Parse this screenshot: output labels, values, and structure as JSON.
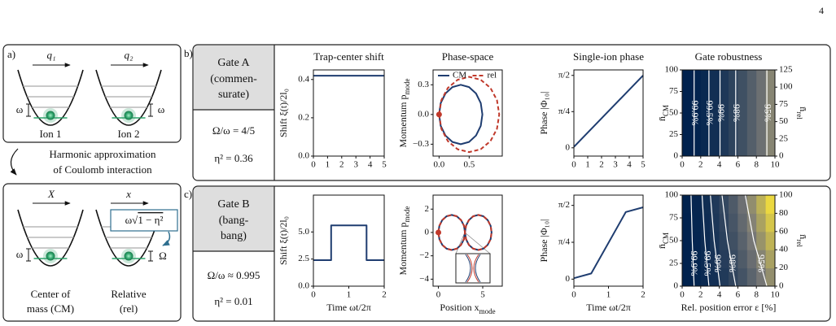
{
  "page_number": "4",
  "panel_a": {
    "label": "a)",
    "q1": "q₁",
    "q2": "q₂",
    "omega_left": "ω",
    "omega_right": "ω",
    "ion1": "Ion 1",
    "ion2": "Ion 2",
    "approx": [
      "Harmonic approximation",
      "of Coulomb interaction"
    ],
    "X": "X",
    "x": "x",
    "freq_box": [
      "ω√",
      "1 − η²"
    ],
    "omega_cm": "ω",
    "omega_rel": "Ω",
    "cm_label": [
      "Center of",
      "mass (CM)"
    ],
    "rel_label": [
      "Relative",
      "(rel)"
    ]
  },
  "panel_b": {
    "label": "b)",
    "gate": [
      "Gate A",
      "(commen-",
      "surate)"
    ],
    "ratio": "Ω/ω = 4/5",
    "eta": "η² = 0.36"
  },
  "panel_c": {
    "label": "c)",
    "gate": [
      "Gate B",
      "(bang-",
      "bang)"
    ],
    "ratio": "Ω/ω ≈ 0.995",
    "eta": "η² = 0.01"
  },
  "chart_data": [
    {
      "type": "line",
      "title": "Trap-center shift",
      "ylabel": "Shift ξ(t)/2l₀",
      "x": [
        0,
        5
      ],
      "series": [
        {
          "color": "#1f3d70",
          "values": [
            0.42,
            0.42
          ]
        }
      ],
      "xlim": [
        0,
        5
      ],
      "xticks": [
        0,
        1,
        2,
        3,
        4,
        5
      ],
      "ylim": [
        0,
        0.45
      ],
      "yticks": [
        {
          "value": 0,
          "label": "0.0"
        },
        0.2,
        0.4
      ]
    },
    {
      "type": "line",
      "title": "Phase-space",
      "ylabel": [
        "Momentum p",
        "mode"
      ],
      "legend": "upper center",
      "series": [
        {
          "name": "CM",
          "color": "#1f3d70",
          "x": [
            0,
            0.027,
            0.105,
            0.222,
            0.36,
            0.498,
            0.615,
            0.693,
            0.72,
            0.693,
            0.615,
            0.498,
            0.36,
            0.222,
            0.105,
            0.027,
            0
          ],
          "values": [
            0,
            0.115,
            0.212,
            0.277,
            0.3,
            0.277,
            0.212,
            0.115,
            0,
            -0.115,
            -0.212,
            -0.277,
            -0.3,
            -0.277,
            -0.212,
            -0.115,
            0
          ]
        },
        {
          "name": "rel",
          "color": "#c0392b",
          "dash": true,
          "start_marker": true,
          "x": [
            0,
            0.038,
            0.146,
            0.309,
            0.5,
            0.691,
            0.854,
            0.962,
            1.0,
            0.962,
            0.854,
            0.691,
            0.5,
            0.309,
            0.146,
            0.038,
            0
          ],
          "values": [
            0,
            0.145,
            0.269,
            0.351,
            0.38,
            0.351,
            0.269,
            0.145,
            0,
            -0.145,
            -0.269,
            -0.351,
            -0.38,
            -0.351,
            -0.269,
            -0.145,
            0
          ]
        }
      ],
      "xlim": [
        -0.1,
        1.05
      ],
      "xticks": [
        {
          "value": 0,
          "label": "0.0"
        },
        0.5
      ],
      "ylim": [
        -0.42,
        0.45
      ],
      "yticks": [
        {
          "value": -0.3,
          "label": "−0.3"
        },
        {
          "value": 0,
          "label": "0.0"
        },
        0.3
      ]
    },
    {
      "type": "line",
      "title": "Single-ion phase",
      "ylabel": "Phase |Φ₁₀|",
      "x": [
        0,
        5
      ],
      "series": [
        {
          "color": "#1f3d70",
          "values": [
            0.02,
            1.57
          ]
        }
      ],
      "xlim": [
        0,
        5
      ],
      "xticks": [
        0,
        1,
        2,
        3,
        4,
        5
      ],
      "ylim": [
        -0.18,
        1.69
      ],
      "yticks": [
        0,
        {
          "value": 0.785,
          "label": "π/4"
        },
        {
          "value": 1.571,
          "label": "π/2"
        }
      ]
    },
    {
      "type": "heatmap",
      "title": "Gate robustness",
      "ylabel": [
        "n̄",
        "CM"
      ],
      "y2label": [
        "n̄",
        "rel"
      ],
      "xbins": [
        0,
        1,
        2,
        3,
        4,
        5,
        6,
        7,
        8,
        9,
        10
      ],
      "ybins": [
        0,
        100
      ],
      "z": [
        [
          99.99,
          99.87,
          99.63,
          99.27,
          98.79,
          98.19,
          97.47,
          96.63,
          95.67,
          94.59
        ]
      ],
      "zlim": [
        90,
        100
      ],
      "colormap": [
        "#fde737",
        "#7d7c78",
        "#00224e"
      ],
      "contours": [
        {
          "level": 99.9,
          "label": "99.9%",
          "x": [
            1.29,
            1.29
          ],
          "y": [
            0,
            100
          ]
        },
        {
          "level": 99.5,
          "label": "99.5%",
          "x": [
            2.89,
            2.89
          ],
          "y": [
            0,
            100
          ]
        },
        {
          "level": 99,
          "label": "99%",
          "x": [
            4.08,
            4.08
          ],
          "y": [
            0,
            100
          ]
        },
        {
          "level": 98,
          "label": "98%",
          "x": [
            5.77,
            5.77
          ],
          "y": [
            0,
            100
          ]
        },
        {
          "level": 95,
          "label": "95%",
          "x": [
            9.13,
            9.13
          ],
          "y": [
            0,
            100
          ]
        }
      ],
      "xlim": [
        0,
        10
      ],
      "xticks": [
        0,
        2,
        4,
        6,
        8,
        10
      ],
      "ylim": [
        0,
        100
      ],
      "yticks": [
        0,
        25,
        50,
        75,
        100
      ],
      "y2lim": [
        0,
        125
      ],
      "y2ticks": [
        0,
        25,
        50,
        75,
        100,
        125
      ]
    },
    {
      "type": "line",
      "ylabel": "Shift ξ(t)/2l₀",
      "xlabel": "Time ωt/2π",
      "x": [
        0,
        0.5,
        0.5,
        1.5,
        1.5,
        2
      ],
      "series": [
        {
          "color": "#1f3d70",
          "values": [
            2.4,
            2.4,
            5.6,
            5.6,
            2.4,
            2.4
          ]
        }
      ],
      "xlim": [
        0,
        2
      ],
      "xticks": [
        0,
        1,
        2
      ],
      "ylim": [
        0,
        8.4
      ],
      "yticks": [
        {
          "value": 0,
          "label": "0.0"
        },
        2.5,
        {
          "value": 5,
          "label": "5.0"
        }
      ]
    },
    {
      "type": "line",
      "ylabel": [
        "Momentum p",
        "mode"
      ],
      "xlabel": [
        "Position x",
        "mode"
      ],
      "x": [
        0,
        0.114,
        0.44,
        0.926,
        1.5,
        2.074,
        2.56,
        2.886,
        3.0,
        3.114,
        3.44,
        3.926,
        4.5,
        5.074,
        5.56,
        5.886,
        6.0,
        5.886,
        5.56,
        5.074,
        4.5,
        3.926,
        3.44,
        3.114,
        3.0,
        2.886,
        2.56,
        2.074,
        1.5,
        0.926,
        0.44,
        0.114,
        0
      ],
      "series": [
        {
          "color": "#1f3d70",
          "values": [
            0,
            0.574,
            1.06,
            1.386,
            1.5,
            1.386,
            1.06,
            0.574,
            0,
            0.574,
            1.06,
            1.386,
            1.5,
            1.386,
            1.06,
            0.574,
            0,
            -0.574,
            -1.06,
            -1.386,
            -1.5,
            -1.386,
            -1.06,
            -0.574,
            0,
            -0.574,
            -1.06,
            -1.386,
            -1.5,
            -1.386,
            -1.06,
            -0.574,
            0
          ]
        },
        {
          "color": "#c0392b",
          "dash": true,
          "start_marker": true,
          "values": [
            0,
            0.574,
            1.06,
            1.386,
            1.5,
            1.386,
            1.06,
            0.574,
            0,
            0.574,
            1.06,
            1.386,
            1.5,
            1.386,
            1.06,
            0.574,
            0,
            -0.574,
            -1.06,
            -1.386,
            -1.5,
            -1.386,
            -1.06,
            -0.574,
            0,
            -0.574,
            -1.06,
            -1.386,
            -1.5,
            -1.386,
            -1.06,
            -0.574,
            0
          ]
        }
      ],
      "xlim": [
        -0.6,
        7.2
      ],
      "xticks": [
        0,
        5
      ],
      "ylim": [
        -4.6,
        3.2
      ],
      "yticks": [
        {
          "value": -4,
          "label": "−4"
        },
        {
          "value": -2,
          "label": "−2"
        },
        0,
        2
      ]
    },
    {
      "type": "line",
      "ylabel": "Phase |Φ₁₀|",
      "xlabel": "Time ωt/2π",
      "x": [
        0,
        0.5,
        1.5,
        2
      ],
      "series": [
        {
          "color": "#1f3d70",
          "values": [
            0.02,
            0.12,
            1.43,
            1.53
          ]
        }
      ],
      "xlim": [
        0,
        2
      ],
      "xticks": [
        0,
        1,
        2
      ],
      "ylim": [
        -0.15,
        1.79
      ],
      "yticks": [
        0,
        {
          "value": 0.785,
          "label": "π/4"
        },
        {
          "value": 1.571,
          "label": "π/2"
        }
      ]
    },
    {
      "type": "heatmap",
      "ylabel": [
        "n̄",
        "CM"
      ],
      "y2label": [
        "n̄",
        "rel"
      ],
      "xlabel": "Rel. position error ε [%]",
      "xbins": [
        0,
        1,
        2,
        3,
        4,
        5,
        6,
        7,
        8,
        9,
        10
      ],
      "ybins": [
        0,
        20,
        40,
        60,
        80,
        100
      ],
      "z": [
        [
          99.98,
          99.85,
          99.6,
          99.21,
          98.69,
          98.04,
          97.26,
          96.36,
          95.32,
          94.15
        ],
        [
          99.98,
          99.83,
          99.54,
          99.09,
          98.49,
          97.75,
          96.86,
          95.82,
          94.63,
          93.29
        ],
        [
          99.98,
          99.81,
          99.48,
          98.97,
          98.3,
          97.46,
          96.45,
          95.28,
          93.93,
          92.42
        ],
        [
          99.98,
          99.79,
          99.42,
          98.85,
          98.1,
          97.17,
          96.05,
          94.74,
          93.24,
          91.55
        ],
        [
          99.97,
          99.77,
          99.36,
          98.74,
          97.91,
          96.88,
          95.64,
          94.2,
          92.54,
          90.69
        ]
      ],
      "zlim": [
        90,
        100
      ],
      "colormap": [
        "#fde737",
        "#7d7c78",
        "#00224e"
      ],
      "contours": [
        {
          "level": 99.9,
          "label": "99.9%",
          "x": [
            1.29,
            1.09,
            0.96
          ],
          "y": [
            0,
            50,
            100
          ]
        },
        {
          "level": 99.5,
          "label": "99.5%",
          "x": [
            2.89,
            2.44,
            2.15
          ],
          "y": [
            0,
            50,
            100
          ]
        },
        {
          "level": 99,
          "label": "99%",
          "x": [
            4.08,
            3.45,
            3.04
          ],
          "y": [
            0,
            50,
            100
          ]
        },
        {
          "level": 98,
          "label": "98%",
          "x": [
            5.77,
            4.88,
            4.3
          ],
          "y": [
            0,
            50,
            100
          ]
        },
        {
          "level": 95,
          "label": "95%",
          "x": [
            9.13,
            7.72,
            6.8
          ],
          "y": [
            0,
            50,
            100
          ]
        }
      ],
      "xlim": [
        0,
        10
      ],
      "xticks": [
        0,
        2,
        4,
        6,
        8,
        10
      ],
      "ylim": [
        0,
        100
      ],
      "yticks": [
        0,
        25,
        50,
        75,
        100
      ],
      "y2lim": [
        0,
        100
      ],
      "y2ticks": [
        0,
        20,
        40,
        60,
        80,
        100
      ]
    }
  ]
}
